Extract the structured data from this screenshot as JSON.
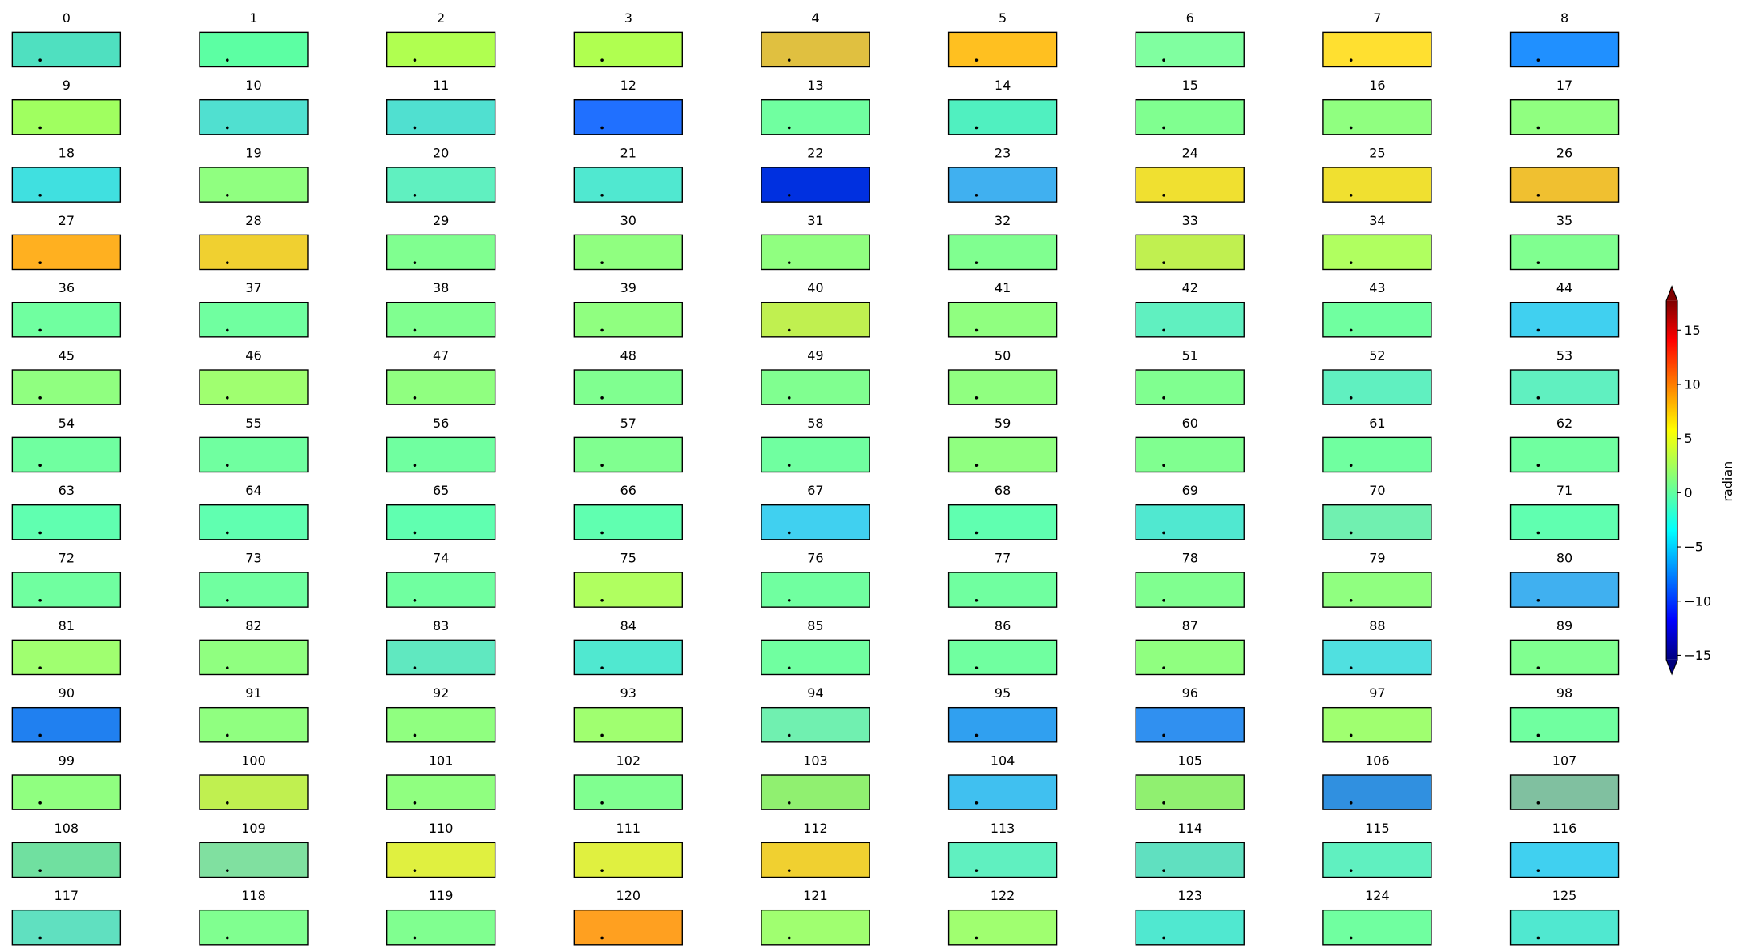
{
  "chart_data": {
    "type": "image_grid",
    "panels": [
      {
        "title": "0",
        "color": "#4fe0c0"
      },
      {
        "title": "1",
        "color": "#5cffa3"
      },
      {
        "title": "2",
        "color": "#b0ff50"
      },
      {
        "title": "3",
        "color": "#b0ff50"
      },
      {
        "title": "4",
        "color": "#e0c040"
      },
      {
        "title": "5",
        "color": "#ffc020"
      },
      {
        "title": "6",
        "color": "#80ffa0"
      },
      {
        "title": "7",
        "color": "#ffe030"
      },
      {
        "title": "8",
        "color": "#2090ff"
      },
      {
        "title": "9",
        "color": "#a0ff60"
      },
      {
        "title": "10",
        "color": "#50e0d0"
      },
      {
        "title": "11",
        "color": "#50e0d0"
      },
      {
        "title": "12",
        "color": "#2070ff"
      },
      {
        "title": "13",
        "color": "#70ffa0"
      },
      {
        "title": "14",
        "color": "#50f0c0"
      },
      {
        "title": "15",
        "color": "#80ff90"
      },
      {
        "title": "16",
        "color": "#90ff80"
      },
      {
        "title": "17",
        "color": "#90ff80"
      },
      {
        "title": "18",
        "color": "#40e0e0"
      },
      {
        "title": "19",
        "color": "#90ff80"
      },
      {
        "title": "20",
        "color": "#60f0c0"
      },
      {
        "title": "21",
        "color": "#50e8d0"
      },
      {
        "title": "22",
        "color": "#0030e0"
      },
      {
        "title": "23",
        "color": "#40b0f0"
      },
      {
        "title": "24",
        "color": "#f0e030"
      },
      {
        "title": "25",
        "color": "#f0e030"
      },
      {
        "title": "26",
        "color": "#f0c030"
      },
      {
        "title": "27",
        "color": "#ffb020"
      },
      {
        "title": "28",
        "color": "#f0d030"
      },
      {
        "title": "29",
        "color": "#80ff90"
      },
      {
        "title": "30",
        "color": "#90ff80"
      },
      {
        "title": "31",
        "color": "#90ff80"
      },
      {
        "title": "32",
        "color": "#80ff90"
      },
      {
        "title": "33",
        "color": "#c0f050"
      },
      {
        "title": "34",
        "color": "#b0ff60"
      },
      {
        "title": "35",
        "color": "#80ff90"
      },
      {
        "title": "36",
        "color": "#70ffa0"
      },
      {
        "title": "37",
        "color": "#70ffa0"
      },
      {
        "title": "38",
        "color": "#80ff90"
      },
      {
        "title": "39",
        "color": "#90ff80"
      },
      {
        "title": "40",
        "color": "#c0f050"
      },
      {
        "title": "41",
        "color": "#90ff80"
      },
      {
        "title": "42",
        "color": "#60f0c0"
      },
      {
        "title": "43",
        "color": "#70ffa0"
      },
      {
        "title": "44",
        "color": "#40d0f0"
      },
      {
        "title": "45",
        "color": "#90ff80"
      },
      {
        "title": "46",
        "color": "#a0ff70"
      },
      {
        "title": "47",
        "color": "#90ff80"
      },
      {
        "title": "48",
        "color": "#80ff90"
      },
      {
        "title": "49",
        "color": "#80ff90"
      },
      {
        "title": "50",
        "color": "#90ff80"
      },
      {
        "title": "51",
        "color": "#80ff90"
      },
      {
        "title": "52",
        "color": "#60f0c0"
      },
      {
        "title": "53",
        "color": "#60f0c0"
      },
      {
        "title": "54",
        "color": "#70ffa0"
      },
      {
        "title": "55",
        "color": "#70ffa0"
      },
      {
        "title": "56",
        "color": "#70ffa0"
      },
      {
        "title": "57",
        "color": "#80ff90"
      },
      {
        "title": "58",
        "color": "#70ffa0"
      },
      {
        "title": "59",
        "color": "#90ff80"
      },
      {
        "title": "60",
        "color": "#80ff90"
      },
      {
        "title": "61",
        "color": "#70ffa0"
      },
      {
        "title": "62",
        "color": "#70ffa0"
      },
      {
        "title": "63",
        "color": "#60ffb0"
      },
      {
        "title": "64",
        "color": "#60ffb0"
      },
      {
        "title": "65",
        "color": "#60ffb0"
      },
      {
        "title": "66",
        "color": "#60ffb0"
      },
      {
        "title": "67",
        "color": "#40d0f0"
      },
      {
        "title": "68",
        "color": "#60ffb0"
      },
      {
        "title": "69",
        "color": "#50e8d0"
      },
      {
        "title": "70",
        "color": "#70f0b0"
      },
      {
        "title": "71",
        "color": "#60ffb0"
      },
      {
        "title": "72",
        "color": "#70ffa0"
      },
      {
        "title": "73",
        "color": "#70ffa0"
      },
      {
        "title": "74",
        "color": "#70ffa0"
      },
      {
        "title": "75",
        "color": "#b0ff60"
      },
      {
        "title": "76",
        "color": "#70ffa0"
      },
      {
        "title": "77",
        "color": "#70ffa0"
      },
      {
        "title": "78",
        "color": "#80ff90"
      },
      {
        "title": "79",
        "color": "#90ff80"
      },
      {
        "title": "80",
        "color": "#40b0f0"
      },
      {
        "title": "81",
        "color": "#a0ff70"
      },
      {
        "title": "82",
        "color": "#90ff80"
      },
      {
        "title": "83",
        "color": "#60e8c0"
      },
      {
        "title": "84",
        "color": "#50e8d0"
      },
      {
        "title": "85",
        "color": "#70ffa0"
      },
      {
        "title": "86",
        "color": "#70ffa0"
      },
      {
        "title": "87",
        "color": "#90ff80"
      },
      {
        "title": "88",
        "color": "#50e0e0"
      },
      {
        "title": "89",
        "color": "#80ff90"
      },
      {
        "title": "90",
        "color": "#2080f0"
      },
      {
        "title": "91",
        "color": "#90ff80"
      },
      {
        "title": "92",
        "color": "#90ff80"
      },
      {
        "title": "93",
        "color": "#a0ff70"
      },
      {
        "title": "94",
        "color": "#70f0b0"
      },
      {
        "title": "95",
        "color": "#30a0f0"
      },
      {
        "title": "96",
        "color": "#3090f0"
      },
      {
        "title": "97",
        "color": "#a0ff70"
      },
      {
        "title": "98",
        "color": "#70ffa0"
      },
      {
        "title": "99",
        "color": "#90ff80"
      },
      {
        "title": "100",
        "color": "#c0f050"
      },
      {
        "title": "101",
        "color": "#90ff80"
      },
      {
        "title": "102",
        "color": "#80ff90"
      },
      {
        "title": "103",
        "color": "#90f070"
      },
      {
        "title": "104",
        "color": "#40c0f0"
      },
      {
        "title": "105",
        "color": "#90f070"
      },
      {
        "title": "106",
        "color": "#3090e0"
      },
      {
        "title": "107",
        "color": "#80c0a0"
      },
      {
        "title": "108",
        "color": "#70e0a0"
      },
      {
        "title": "109",
        "color": "#80e0a0"
      },
      {
        "title": "110",
        "color": "#e0f040"
      },
      {
        "title": "111",
        "color": "#e0f040"
      },
      {
        "title": "112",
        "color": "#f0d030"
      },
      {
        "title": "113",
        "color": "#60f0c0"
      },
      {
        "title": "114",
        "color": "#60e0c0"
      },
      {
        "title": "115",
        "color": "#60f0c0"
      },
      {
        "title": "116",
        "color": "#40d0f0"
      },
      {
        "title": "117",
        "color": "#60e0c0"
      },
      {
        "title": "118",
        "color": "#80ff90"
      },
      {
        "title": "119",
        "color": "#80ff90"
      },
      {
        "title": "120",
        "color": "#ffa020"
      },
      {
        "title": "121",
        "color": "#a0ff70"
      },
      {
        "title": "122",
        "color": "#a0ff70"
      },
      {
        "title": "123",
        "color": "#50e8d0"
      },
      {
        "title": "124",
        "color": "#70ffa0"
      },
      {
        "title": "125",
        "color": "#50e8d0"
      }
    ],
    "colorbar": {
      "colormap": "jet",
      "extend": "both",
      "label": "radian",
      "ylim": [
        -15.4,
        17.7
      ],
      "yticks": [
        {
          "value": -15,
          "label": "−15"
        },
        {
          "value": -10,
          "label": "−10"
        },
        {
          "value": -5,
          "label": "−5"
        },
        0,
        5,
        10,
        15
      ]
    }
  }
}
